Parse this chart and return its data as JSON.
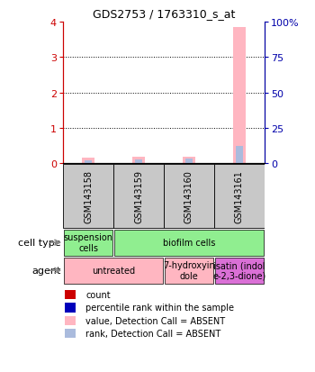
{
  "title": "GDS2753 / 1763310_s_at",
  "samples": [
    "GSM143158",
    "GSM143159",
    "GSM143160",
    "GSM143161"
  ],
  "ylim_left": [
    0,
    4
  ],
  "ylim_right": [
    0,
    100
  ],
  "yticks_left": [
    0,
    1,
    2,
    3,
    4
  ],
  "yticks_right": [
    0,
    25,
    50,
    75,
    100
  ],
  "ytick_labels_right": [
    "0",
    "25",
    "50",
    "75",
    "100%"
  ],
  "pink_bars": [
    0.15,
    0.18,
    0.18,
    3.85
  ],
  "blue_bars": [
    0.08,
    0.1,
    0.12,
    0.48
  ],
  "pink_bar_color": "#FFB6C1",
  "blue_bar_color": "#AABBDD",
  "red_square_color": "#CC0000",
  "blue_square_color": "#0000BB",
  "bar_width": 0.25,
  "cell_type_row": [
    {
      "label": "suspension\ncells",
      "color": "#90EE90",
      "span": 1
    },
    {
      "label": "biofilm cells",
      "color": "#90EE90",
      "span": 3
    }
  ],
  "agent_row": [
    {
      "label": "untreated",
      "color": "#FFB6C1",
      "span": 2
    },
    {
      "label": "7-hydroxyin\ndole",
      "color": "#FFB6C1",
      "span": 1
    },
    {
      "label": "isatin (indol\ne-2,3-dione)",
      "color": "#DA70D6",
      "span": 1
    }
  ],
  "sample_box_color": "#C8C8C8",
  "axis_left_color": "#CC0000",
  "axis_right_color": "#0000AA",
  "cell_type_label": "cell type",
  "agent_label": "agent",
  "sample_label_fontsize": 7,
  "legend_labels": [
    "count",
    "percentile rank within the sample",
    "value, Detection Call = ABSENT",
    "rank, Detection Call = ABSENT"
  ]
}
